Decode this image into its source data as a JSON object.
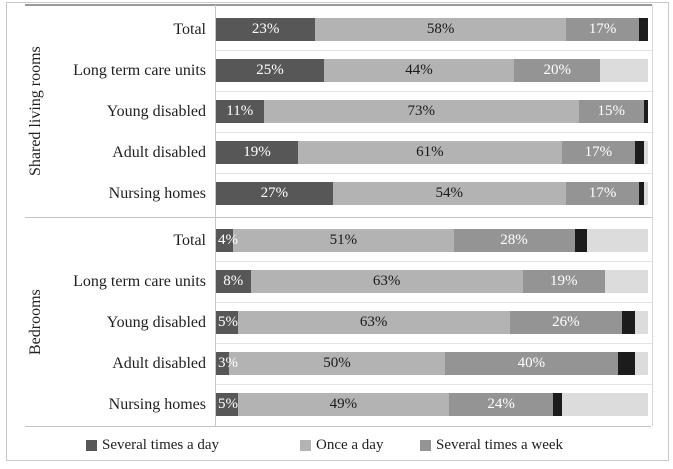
{
  "chart_data": {
    "type": "bar",
    "orientation": "horizontal",
    "stacked": true,
    "title": "",
    "value_suffix": "%",
    "xlim": [
      0,
      100
    ],
    "legend_position": "bottom",
    "series": [
      {
        "name": "Several times a day",
        "color": "#575757",
        "label_color": "#ffffff",
        "in_legend": true
      },
      {
        "name": "Once a day",
        "color": "#b3b3b3",
        "label_color": "#1a1a1a",
        "in_legend": true
      },
      {
        "name": "Several times a week",
        "color": "#949494",
        "label_color": "#ffffff",
        "in_legend": true
      },
      {
        "name": "unlabeled-black-segment",
        "color": "#1c1c1c",
        "label_color": "",
        "in_legend": false
      },
      {
        "name": "unlabeled-light-gray-segment",
        "color": "#dcdcdc",
        "label_color": "",
        "in_legend": false
      }
    ],
    "groups": [
      {
        "label": "Shared living rooms",
        "rows": [
          {
            "label": "Total",
            "values": [
              23,
              58,
              17,
              2,
              0
            ]
          },
          {
            "label": "Long term care units",
            "values": [
              25,
              44,
              20,
              0,
              11
            ]
          },
          {
            "label": "Young disabled",
            "values": [
              11,
              73,
              15,
              1,
              0
            ]
          },
          {
            "label": "Adult disabled",
            "values": [
              19,
              61,
              17,
              2,
              1
            ]
          },
          {
            "label": "Nursing homes",
            "values": [
              27,
              54,
              17,
              1,
              1
            ]
          }
        ]
      },
      {
        "label": "Bedrooms",
        "rows": [
          {
            "label": "Total",
            "values": [
              4,
              51,
              28,
              3,
              14
            ]
          },
          {
            "label": "Long term care units",
            "values": [
              8,
              63,
              19,
              0,
              10
            ]
          },
          {
            "label": "Young disabled",
            "values": [
              5,
              63,
              26,
              3,
              3
            ]
          },
          {
            "label": "Adult disabled",
            "values": [
              3,
              50,
              40,
              4,
              3
            ]
          },
          {
            "label": "Nursing homes",
            "values": [
              5,
              49,
              24,
              2,
              20
            ]
          }
        ]
      }
    ],
    "legend_items": [
      "Several times a day",
      "Once a day",
      "Several times a week"
    ]
  }
}
